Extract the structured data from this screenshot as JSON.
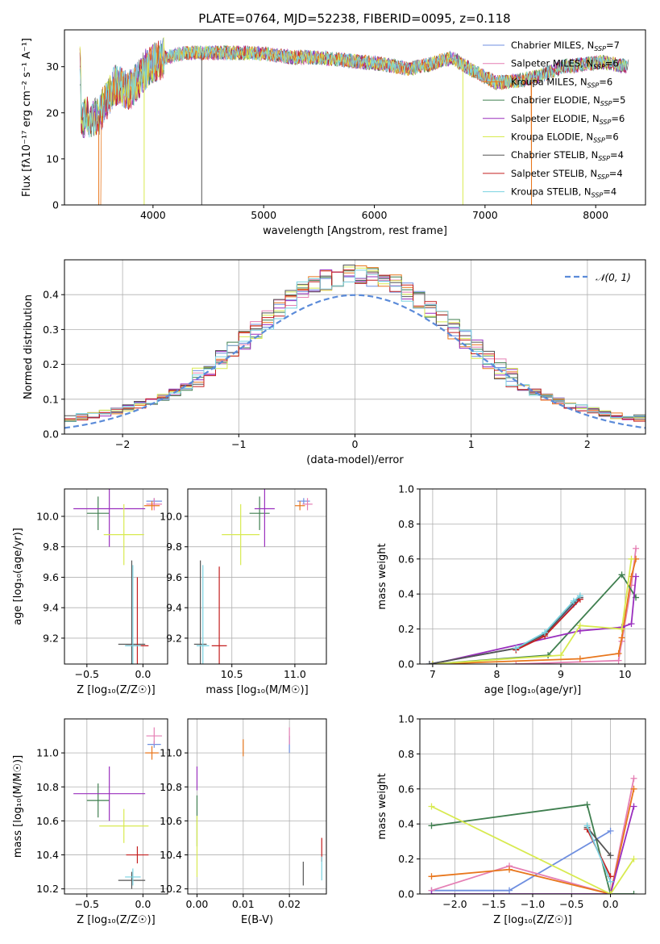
{
  "figure": {
    "title": "PLATE=0764, MJD=52238, FIBERID=0095, z=0.118"
  },
  "models": [
    {
      "name": "Chabrier MILES",
      "nssp": 7,
      "color": "#6f8fe0"
    },
    {
      "name": "Salpeter MILES",
      "nssp": 6,
      "color": "#e57fb4"
    },
    {
      "name": "Kroupa MILES",
      "nssp": 6,
      "color": "#e8761c"
    },
    {
      "name": "Chabrier ELODIE",
      "nssp": 5,
      "color": "#3f7f4f"
    },
    {
      "name": "Salpeter ELODIE",
      "nssp": 6,
      "color": "#9a2fbe"
    },
    {
      "name": "Kroupa ELODIE",
      "nssp": 6,
      "color": "#d8ea50"
    },
    {
      "name": "Chabrier STELIB",
      "nssp": 4,
      "color": "#555555"
    },
    {
      "name": "Salpeter STELIB",
      "nssp": 4,
      "color": "#c41f1f"
    },
    {
      "name": "Kroupa STELIB",
      "nssp": 4,
      "color": "#78d2e0"
    }
  ],
  "chart_data": [
    {
      "type": "line",
      "id": "spectrum",
      "title": "PLATE=0764, MJD=52238, FIBERID=0095, z=0.118",
      "xlabel": "wavelength [Angstrom, rest frame]",
      "ylabel": "Flux [fλ10⁻¹⁷ erg cm⁻² s⁻¹ A⁻¹]",
      "xlim": [
        3200,
        8450
      ],
      "ylim": [
        0,
        38
      ],
      "xticks": [
        4000,
        5000,
        6000,
        7000,
        8000
      ],
      "yticks": [
        0,
        10,
        20,
        30
      ],
      "grid": false,
      "legend": "top-right",
      "continuum": [
        [
          3350,
          19
        ],
        [
          3500,
          19
        ],
        [
          3650,
          26
        ],
        [
          3800,
          25
        ],
        [
          3950,
          30
        ],
        [
          4100,
          32
        ],
        [
          4300,
          33
        ],
        [
          4500,
          33
        ],
        [
          4700,
          33
        ],
        [
          4900,
          33
        ],
        [
          5100,
          32.5
        ],
        [
          5300,
          32
        ],
        [
          5500,
          32
        ],
        [
          5700,
          31.5
        ],
        [
          5900,
          31
        ],
        [
          6100,
          30.5
        ],
        [
          6300,
          29.5
        ],
        [
          6500,
          30.5
        ],
        [
          6700,
          32
        ],
        [
          6900,
          29
        ],
        [
          7100,
          26.5
        ],
        [
          7300,
          27
        ],
        [
          7500,
          28
        ],
        [
          7700,
          30
        ],
        [
          7900,
          30.5
        ],
        [
          8050,
          31
        ],
        [
          8300,
          30
        ]
      ]
    },
    {
      "type": "line",
      "id": "residuals",
      "xlabel": "(data-model)/error",
      "ylabel": "Normed distribution",
      "xlim": [
        -2.5,
        2.5
      ],
      "ylim": [
        0,
        0.5
      ],
      "xticks": [
        -2,
        -1,
        0,
        1,
        2
      ],
      "yticks": [
        0.0,
        0.1,
        0.2,
        0.3,
        0.4
      ],
      "grid": true,
      "legend": "top-right",
      "legend_label": "𝒩(0, 1)",
      "gaussian": {
        "mean": 0,
        "sigma": 1
      }
    },
    {
      "type": "scatter",
      "id": "age_vs_Z",
      "xlabel": "Z [log₁₀(Z/Z☉)]",
      "ylabel": "age  [log₁₀(age/yr)]",
      "xlim": [
        -0.7,
        0.22
      ],
      "ylim": [
        9.03,
        10.18
      ],
      "xticks": [
        -0.5,
        0.0
      ],
      "yticks": [
        9.2,
        9.4,
        9.6,
        9.8,
        10.0
      ],
      "grid": true,
      "points": [
        {
          "x": 0.1,
          "y": 10.1,
          "xerr": 0.07,
          "yerr": 0.02
        },
        {
          "x": 0.1,
          "y": 10.08,
          "xerr": 0.07,
          "yerr": 0.04
        },
        {
          "x": 0.08,
          "y": 10.07,
          "xerr": 0.07,
          "yerr": 0.03
        },
        {
          "x": -0.4,
          "y": 10.02,
          "xerr": 0.1,
          "yerr": 0.11
        },
        {
          "x": -0.3,
          "y": 10.05,
          "xerr": 0.32,
          "yerr": 0.25
        },
        {
          "x": -0.17,
          "y": 9.88,
          "xerr": 0.18,
          "yerr": 0.2
        },
        {
          "x": -0.1,
          "y": 9.16,
          "xerr": 0.12,
          "yerr": 0.55
        },
        {
          "x": -0.05,
          "y": 9.15,
          "xerr": 0.1,
          "yerr": 0.45
        },
        {
          "x": -0.09,
          "y": 9.15,
          "xerr": 0.07,
          "yerr": 0.53
        }
      ]
    },
    {
      "type": "scatter",
      "id": "age_vs_mass",
      "xlabel": "mass [log₁₀(M/M☉)]",
      "ylabel": "",
      "xlim": [
        10.15,
        11.25
      ],
      "ylim": [
        9.03,
        10.18
      ],
      "xticks": [
        10.5,
        11.0
      ],
      "yticks": [
        9.2,
        9.4,
        9.6,
        9.8,
        10.0
      ],
      "grid": true,
      "points": [
        {
          "x": 11.07,
          "y": 10.1,
          "xerr": 0.05,
          "yerr": 0.02
        },
        {
          "x": 11.1,
          "y": 10.08,
          "xerr": 0.04,
          "yerr": 0.04
        },
        {
          "x": 11.04,
          "y": 10.07,
          "xerr": 0.04,
          "yerr": 0.03
        },
        {
          "x": 10.72,
          "y": 10.02,
          "xerr": 0.08,
          "yerr": 0.11
        },
        {
          "x": 10.76,
          "y": 10.05,
          "xerr": 0.08,
          "yerr": 0.25
        },
        {
          "x": 10.57,
          "y": 9.88,
          "xerr": 0.15,
          "yerr": 0.2
        },
        {
          "x": 10.25,
          "y": 9.16,
          "xerr": 0.05,
          "yerr": 0.55
        },
        {
          "x": 10.4,
          "y": 9.15,
          "xerr": 0.06,
          "yerr": 0.52
        },
        {
          "x": 10.27,
          "y": 9.15,
          "xerr": 0.05,
          "yerr": 0.53
        }
      ]
    },
    {
      "type": "line",
      "id": "massweight_vs_age",
      "xlabel": "age  [log₁₀(age/yr)]",
      "ylabel": "mass weight",
      "xlim": [
        6.8,
        10.32
      ],
      "ylim": [
        0,
        1.0
      ],
      "xticks": [
        7,
        8,
        9,
        10
      ],
      "yticks": [
        0.0,
        0.2,
        0.4,
        0.6,
        0.8,
        1.0
      ],
      "grid": true,
      "series": [
        {
          "x": [
            6.95,
            8.3,
            8.75,
            9.2,
            9.3
          ],
          "y": [
            0.0,
            0.09,
            0.17,
            0.34,
            0.38
          ]
        },
        {
          "x": [
            8.3,
            9.9,
            9.95,
            10.1,
            10.17
          ],
          "y": [
            0.0,
            0.02,
            0.13,
            0.45,
            0.66
          ]
        },
        {
          "x": [
            7.0,
            9.3,
            9.9,
            9.95,
            10.1,
            10.17
          ],
          "y": [
            0.0,
            0.03,
            0.06,
            0.15,
            0.5,
            0.6
          ]
        },
        {
          "x": [
            7.0,
            8.8,
            9.95,
            10.17
          ],
          "y": [
            0.0,
            0.05,
            0.51,
            0.38
          ]
        },
        {
          "x": [
            7.0,
            9.3,
            9.95,
            10.1,
            10.17
          ],
          "y": [
            0.0,
            0.19,
            0.21,
            0.23,
            0.5
          ]
        },
        {
          "x": [
            7.0,
            9.0,
            9.3,
            9.95,
            10.1
          ],
          "y": [
            0.0,
            0.05,
            0.22,
            0.2,
            0.6
          ]
        },
        {
          "x": [
            6.95,
            8.3,
            8.75,
            9.2,
            9.3
          ],
          "y": [
            0.0,
            0.09,
            0.17,
            0.35,
            0.38
          ]
        },
        {
          "x": [
            8.3,
            8.75,
            9.3
          ],
          "y": [
            0.08,
            0.16,
            0.37
          ]
        },
        {
          "x": [
            8.3,
            8.75,
            9.2,
            9.3
          ],
          "y": [
            0.09,
            0.18,
            0.36,
            0.39
          ]
        }
      ]
    },
    {
      "type": "scatter",
      "id": "mass_vs_Z",
      "xlabel": "Z [log₁₀(Z/Z☉)]",
      "ylabel": "mass [log₁₀(M/M☉)]",
      "xlim": [
        -0.7,
        0.22
      ],
      "ylim": [
        10.17,
        11.2
      ],
      "xticks": [
        -0.5,
        0.0
      ],
      "yticks": [
        10.2,
        10.4,
        10.6,
        10.8,
        11.0
      ],
      "grid": true,
      "points": [
        {
          "x": 0.1,
          "y": 11.05,
          "xerr": 0.06,
          "yerr": 0.02
        },
        {
          "x": 0.1,
          "y": 11.1,
          "xerr": 0.07,
          "yerr": 0.05
        },
        {
          "x": 0.08,
          "y": 11.0,
          "xerr": 0.06,
          "yerr": 0.04
        },
        {
          "x": -0.4,
          "y": 10.72,
          "xerr": 0.1,
          "yerr": 0.1
        },
        {
          "x": -0.3,
          "y": 10.76,
          "xerr": 0.32,
          "yerr": 0.16
        },
        {
          "x": -0.17,
          "y": 10.57,
          "xerr": 0.22,
          "yerr": 0.1
        },
        {
          "x": -0.1,
          "y": 10.25,
          "xerr": 0.12,
          "yerr": 0.05
        },
        {
          "x": -0.05,
          "y": 10.4,
          "xerr": 0.1,
          "yerr": 0.05
        },
        {
          "x": -0.09,
          "y": 10.27,
          "xerr": 0.07,
          "yerr": 0.05
        }
      ]
    },
    {
      "type": "scatter",
      "id": "mass_vs_ebv",
      "xlabel": "E(B-V)",
      "ylabel": "",
      "xlim": [
        -0.002,
        0.028
      ],
      "ylim": [
        10.17,
        11.2
      ],
      "xticks": [
        0.0,
        0.01,
        0.02
      ],
      "yticks": [
        10.2,
        10.4,
        10.6,
        10.8,
        11.0
      ],
      "grid": true,
      "points": [
        {
          "x": 0.02,
          "y": 11.05,
          "xerr": 0,
          "yerr": 0.05
        },
        {
          "x": 0.02,
          "y": 11.1,
          "xerr": 0,
          "yerr": 0.05
        },
        {
          "x": 0.01,
          "y": 11.03,
          "xerr": 0,
          "yerr": 0.05
        },
        {
          "x": 0.0,
          "y": 10.6,
          "xerr": 0,
          "yerr": 0.15
        },
        {
          "x": 0.0,
          "y": 10.85,
          "xerr": 0,
          "yerr": 0.07
        },
        {
          "x": 0.0,
          "y": 10.45,
          "xerr": 0,
          "yerr": 0.18
        },
        {
          "x": 0.023,
          "y": 10.29,
          "xerr": 0,
          "yerr": 0.07
        },
        {
          "x": 0.027,
          "y": 10.43,
          "xerr": 0,
          "yerr": 0.07
        },
        {
          "x": 0.027,
          "y": 10.32,
          "xerr": 0,
          "yerr": 0.07
        }
      ]
    },
    {
      "type": "line",
      "id": "massweight_vs_Z",
      "xlabel": "Z [log₁₀(Z/Z☉)]",
      "ylabel": "mass weight",
      "xlim": [
        -2.45,
        0.45
      ],
      "ylim": [
        0,
        1.0
      ],
      "xticks": [
        -2.0,
        -1.5,
        -1.0,
        -0.5,
        0.0
      ],
      "yticks": [
        0.0,
        0.2,
        0.4,
        0.6,
        0.8,
        1.0
      ],
      "grid": true,
      "series": [
        {
          "x": [
            -2.3,
            -1.3,
            0.0
          ],
          "y": [
            0.02,
            0.02,
            0.36
          ]
        },
        {
          "x": [
            -2.3,
            -1.3,
            0.0,
            0.3
          ],
          "y": [
            0.02,
            0.16,
            0.0,
            0.66
          ]
        },
        {
          "x": [
            -2.3,
            -1.3,
            0.0,
            0.3
          ],
          "y": [
            0.1,
            0.14,
            0.0,
            0.6
          ]
        },
        {
          "x": [
            -2.3,
            -0.3,
            0.0,
            0.3
          ],
          "y": [
            0.39,
            0.51,
            0.0,
            0.0
          ]
        },
        {
          "x": [
            -2.3,
            0.0,
            0.3
          ],
          "y": [
            0.0,
            0.0,
            0.5
          ]
        },
        {
          "x": [
            -2.3,
            0.0,
            0.3
          ],
          "y": [
            0.5,
            0.0,
            0.2
          ]
        },
        {
          "x": [
            -0.3,
            0.0
          ],
          "y": [
            0.38,
            0.22
          ]
        },
        {
          "x": [
            -0.3,
            0.0
          ],
          "y": [
            0.37,
            0.1
          ]
        },
        {
          "x": [
            -0.3,
            0.0
          ],
          "y": [
            0.39,
            0.07
          ]
        }
      ]
    }
  ]
}
